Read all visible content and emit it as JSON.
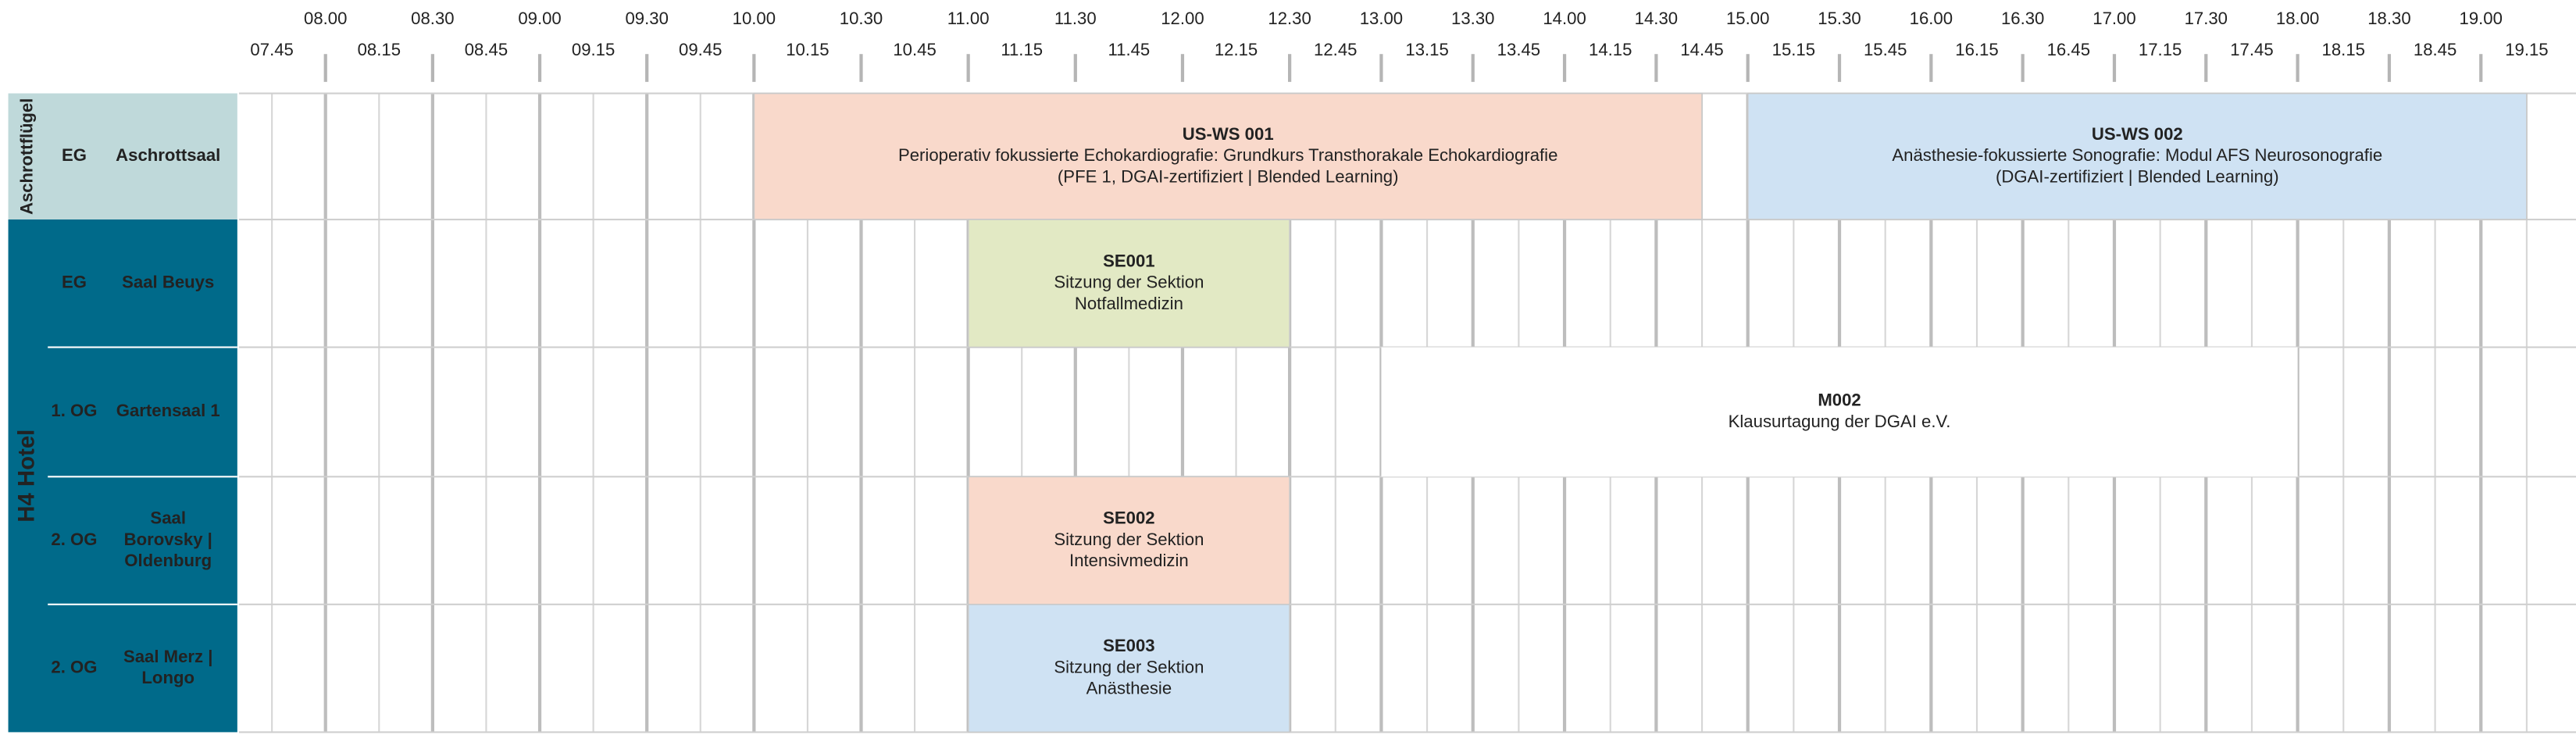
{
  "time_labels": [
    "07.45",
    "08.00",
    "08.15",
    "08.30",
    "08.45",
    "09.00",
    "09.15",
    "09.30",
    "09.45",
    "10.00",
    "10.15",
    "10.30",
    "10.45",
    "11.00",
    "11.15",
    "11.30",
    "11.45",
    "12.00",
    "12.15",
    "12.30",
    "12.45",
    "13.00",
    "13.15",
    "13.30",
    "13.45",
    "14.00",
    "14.15",
    "14.30",
    "14.45",
    "15.00",
    "15.15",
    "15.30",
    "15.45",
    "16.00",
    "16.15",
    "16.30",
    "16.45",
    "17.00",
    "17.15",
    "17.30",
    "17.45",
    "18.00",
    "18.15",
    "18.30",
    "18.45",
    "19.00",
    "19.15"
  ],
  "groups": [
    {
      "label": "Aschrottflügel",
      "color": "#bfd9da",
      "text_color": "#1a1a1a",
      "rows": [
        {
          "floor": "EG",
          "room": [
            "Aschrottsaal"
          ]
        }
      ]
    },
    {
      "label": "H4 Hotel",
      "color": "#006a8a",
      "text_color": "#ffffff",
      "rows": [
        {
          "floor": "EG",
          "room": [
            "Saal Beuys"
          ]
        },
        {
          "floor": "1. OG",
          "room": [
            "Gartensaal 1"
          ]
        },
        {
          "floor": "2. OG",
          "room": [
            "Saal",
            "Borovsky |",
            "Oldenburg"
          ]
        },
        {
          "floor": "2. OG",
          "room": [
            "Saal Merz |",
            "Longo"
          ]
        }
      ]
    }
  ],
  "sessions": [
    {
      "code": "US-WS 001",
      "color": "#f9d9cb",
      "lines": [
        "Perioperativ fokussierte Echokardiografie: Grundkurs Transthorakale Echokardiografie",
        "(PFE 1, DGAI-zertifiziert | Blended Learning)"
      ]
    },
    {
      "code": "US-WS 002",
      "color": "#cfe2f3",
      "lines": [
        "Anästhesie-fokussierte Sonografie: Modul AFS Neurosonografie",
        "(DGAI-zertifiziert | Blended Learning)"
      ]
    },
    {
      "code": "SE001",
      "color": "#e2e9c4",
      "lines": [
        "Sitzung der Sektion",
        "Notfallmedizin"
      ]
    },
    {
      "code": "M002",
      "color": "#ffffff",
      "lines": [
        "Klausurtagung der DGAI e.V."
      ]
    },
    {
      "code": "SE002",
      "color": "#f9d9cb",
      "lines": [
        "Sitzung der Sektion",
        "Intensivmedizin"
      ]
    },
    {
      "code": "SE003",
      "color": "#cfe2f3",
      "lines": [
        "Sitzung der Sektion",
        "Anästhesie"
      ]
    }
  ]
}
